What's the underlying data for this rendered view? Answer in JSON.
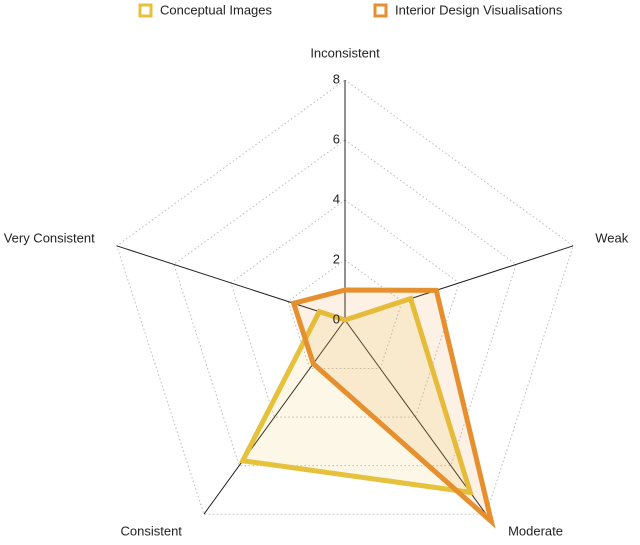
{
  "chart_data": {
    "type": "radar",
    "categories": [
      "Inconsistent",
      "Weak",
      "Moderate",
      "Consistent",
      "Very Consistent"
    ],
    "series": [
      {
        "name": "Conceptual Images",
        "color": "#e6c13b",
        "values": [
          0,
          2.3,
          7.1,
          5.8,
          0.9
        ]
      },
      {
        "name": "Interior Design Visualisations",
        "color": "#e68f2e",
        "values": [
          1,
          3.2,
          8.3,
          1.8,
          1.8
        ]
      }
    ],
    "rlim": [
      0,
      8
    ],
    "rticks": [
      0,
      2,
      4,
      6,
      8
    ],
    "grid": true,
    "legend": "top"
  }
}
